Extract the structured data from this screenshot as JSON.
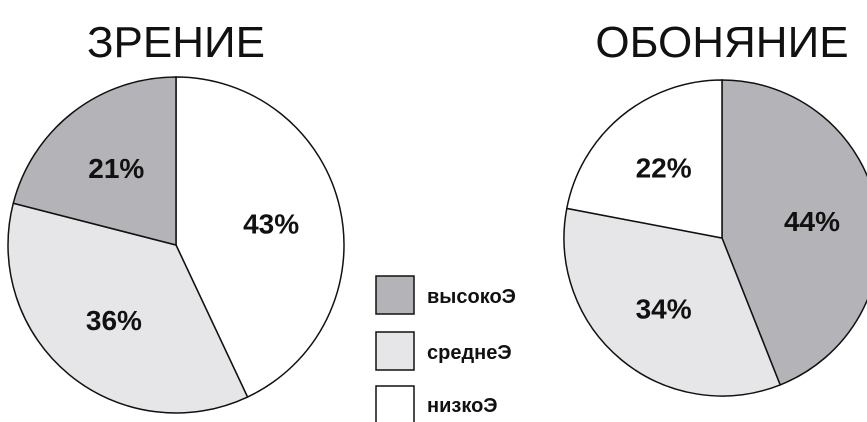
{
  "chart_data": [
    {
      "type": "pie",
      "title": "ЗРЕНИЕ",
      "slices": [
        {
          "label": "высокоЭ",
          "value": 21,
          "display": "21%"
        },
        {
          "label": "среднеЭ",
          "value": 36,
          "display": "36%"
        },
        {
          "label": "низкоЭ",
          "value": 43,
          "display": "43%"
        }
      ]
    },
    {
      "type": "pie",
      "title": "ОБОНЯНИЕ",
      "slices": [
        {
          "label": "высокоЭ",
          "value": 44,
          "display": "44%"
        },
        {
          "label": "среднеЭ",
          "value": 34,
          "display": "34%"
        },
        {
          "label": "низкоЭ",
          "value": 22,
          "display": "22%"
        }
      ]
    }
  ],
  "legend": {
    "items": [
      {
        "label": "высокоЭ",
        "color": "#b4b4b8"
      },
      {
        "label": "среднеЭ",
        "color": "#e6e6e8"
      },
      {
        "label": "низкоЭ",
        "color": "#ffffff"
      }
    ]
  },
  "colors": {
    "outline": "#111111"
  }
}
